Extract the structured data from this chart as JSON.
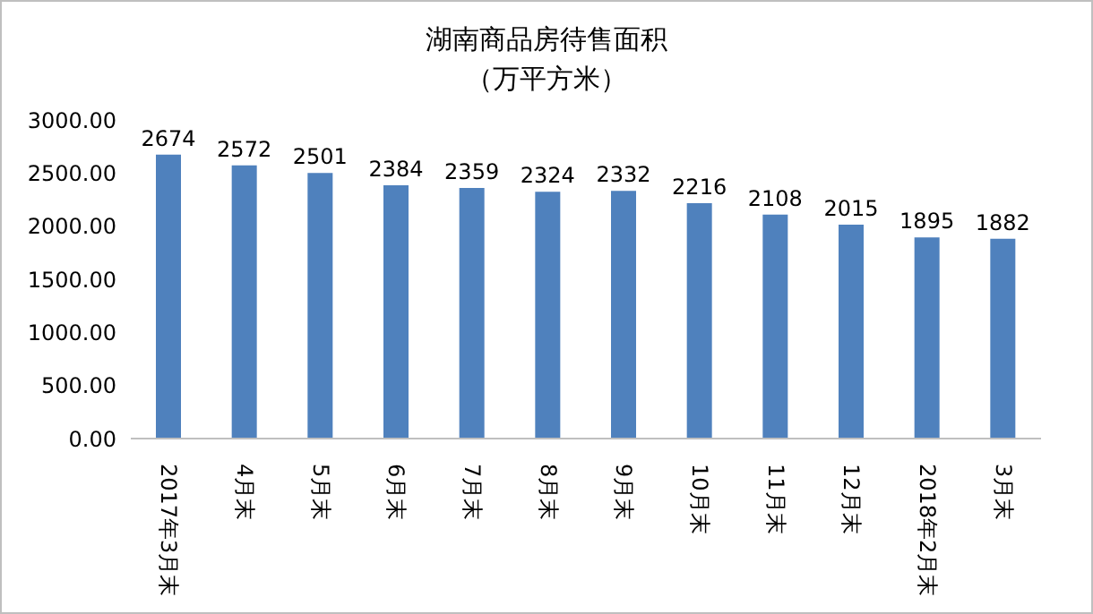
{
  "chart_data": {
    "type": "bar",
    "title": "湖南商品房待售面积",
    "subtitle": "（万平方米）",
    "categories": [
      "2017年3月末",
      "4月末",
      "5月末",
      "6月末",
      "7月末",
      "8月末",
      "9月末",
      "10月末",
      "11月末",
      "12月末",
      "2018年2月末",
      "3月末"
    ],
    "values": [
      2674,
      2572,
      2501,
      2384,
      2359,
      2324,
      2332,
      2216,
      2108,
      2015,
      1895,
      1882
    ],
    "color": "#4f81bd",
    "data_labels": true,
    "grid": false,
    "legend": false,
    "ylim": [
      0,
      3000
    ],
    "yticks": [
      {
        "value": 0,
        "label": "0.00"
      },
      {
        "value": 500,
        "label": "500.00"
      },
      {
        "value": 1000,
        "label": "1000.00"
      },
      {
        "value": 1500,
        "label": "1500.00"
      },
      {
        "value": 2000,
        "label": "2000.00"
      },
      {
        "value": 2500,
        "label": "2500.00"
      },
      {
        "value": 3000,
        "label": "3000.00"
      }
    ]
  }
}
